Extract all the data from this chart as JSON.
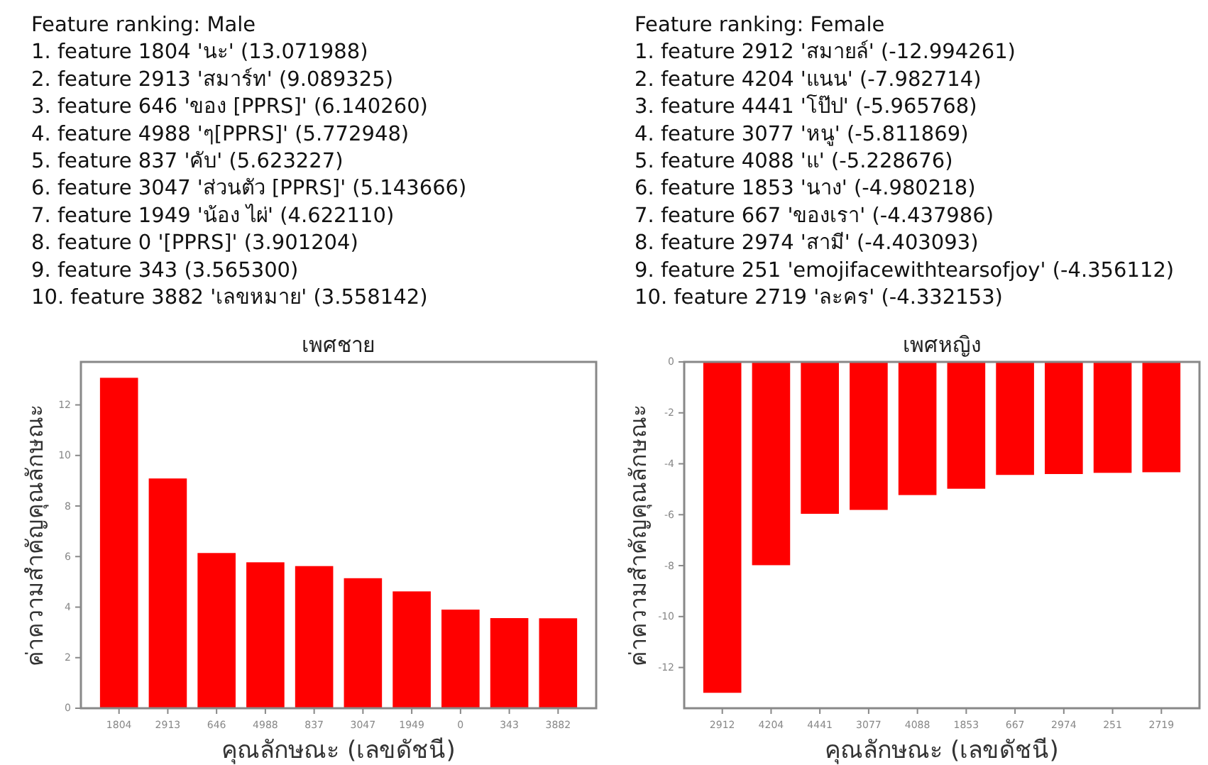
{
  "chart_data": [
    {
      "type": "bar",
      "title": "เพศชาย",
      "xlabel": "คุณลักษณะ (เลขดัชนี)",
      "ylabel": "ค่าความสำคัญคุณลักษณะ",
      "color": "#ff0000",
      "categories": [
        "1804",
        "2913",
        "646",
        "4988",
        "837",
        "3047",
        "1949",
        "0",
        "343",
        "3882"
      ],
      "values": [
        13.071988,
        9.089325,
        6.14026,
        5.772948,
        5.623227,
        5.143666,
        4.62211,
        3.901204,
        3.5653,
        3.558142
      ],
      "ylim": [
        0,
        13.7
      ],
      "yticks": [
        0,
        2,
        4,
        6,
        8,
        10,
        12
      ],
      "annotations": [
        "Feature ranking: Male",
        "1. feature 1804 'นะ' (13.071988)",
        "2. feature 2913 'สมาร์ท' (9.089325)",
        "3. feature 646 'ของ [PPRS]' (6.140260)",
        "4. feature 4988 'ๆ[PPRS]' (5.772948)",
        "5. feature 837 'คับ' (5.623227)",
        "6. feature 3047 'ส่วนตัว [PPRS]' (5.143666)",
        "7. feature 1949 'น้อง ไผ่' (4.622110)",
        "8. feature 0 '[PPRS]' (3.901204)",
        "9. feature 343 (3.565300)",
        "10. feature 3882 'เลขหมาย' (3.558142)"
      ]
    },
    {
      "type": "bar",
      "title": "เพศหญิง",
      "xlabel": "คุณลักษณะ (เลขดัชนี)",
      "ylabel": "ค่าความสำคัญคุณลักษณะ",
      "color": "#ff0000",
      "categories": [
        "2912",
        "4204",
        "4441",
        "3077",
        "4088",
        "1853",
        "667",
        "2974",
        "251",
        "2719"
      ],
      "values": [
        -12.994261,
        -7.982714,
        -5.965768,
        -5.811869,
        -5.228676,
        -4.980218,
        -4.437986,
        -4.403093,
        -4.356112,
        -4.332153
      ],
      "ylim": [
        -13.6,
        0
      ],
      "yticks": [
        0,
        -2,
        -4,
        -6,
        -8,
        -10,
        -12
      ],
      "annotations": [
        "Feature ranking: Female",
        "1. feature 2912 'สมายล์' (-12.994261)",
        "2. feature 4204 'แนน' (-7.982714)",
        "3. feature 4441 'โป๊ป' (-5.965768)",
        "4. feature 3077 'หนู' (-5.811869)",
        "5. feature 4088 'แ' (-5.228676)",
        "6. feature 1853 'นาง' (-4.980218)",
        "7. feature 667 'ของเรา' (-4.437986)",
        "8. feature 2974 'สามี' (-4.403093)",
        "9. feature 251 'emojifacewithtearsofjoy' (-4.356112)",
        "10. feature 2719 'ละคร' (-4.332153)"
      ]
    }
  ]
}
